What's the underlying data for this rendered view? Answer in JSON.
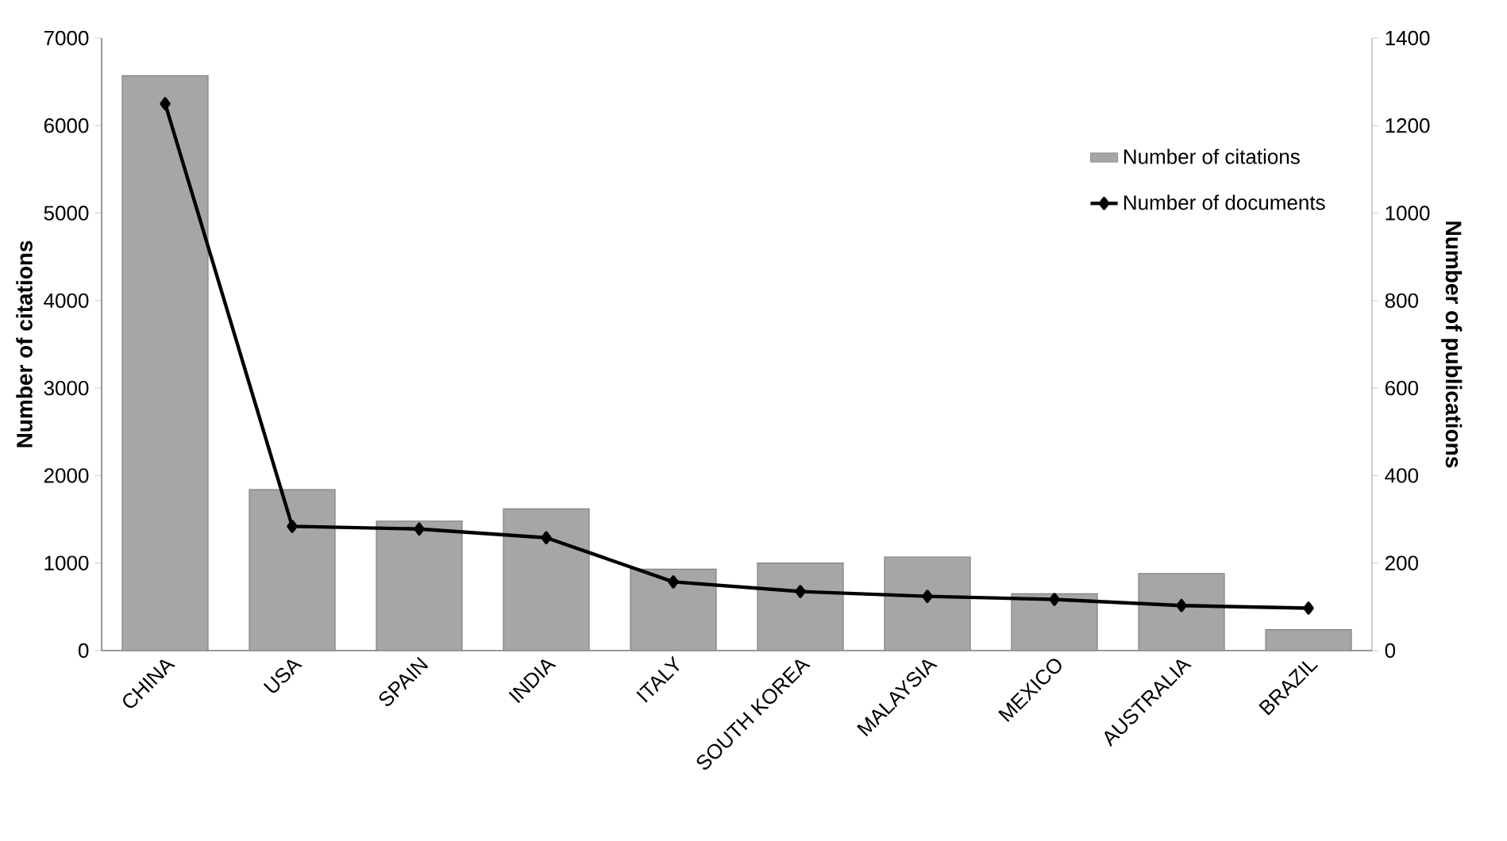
{
  "chart_data": {
    "type": "bar",
    "categories": [
      "CHINA",
      "USA",
      "SPAIN",
      "INDIA",
      "ITALY",
      "SOUTH KOREA",
      "MALAYSIA",
      "MEXICO",
      "AUSTRALIA",
      "BRAZIL"
    ],
    "series": [
      {
        "name": "Number of citations",
        "color": "#a6a6a6",
        "values": [
          6570,
          1840,
          1480,
          1620,
          930,
          1000,
          1070,
          650,
          880,
          240
        ]
      },
      {
        "name": "Number of documents",
        "type": "line",
        "axis": "y2",
        "color": "#000000",
        "marker": "diamond",
        "values": [
          1250,
          284,
          278,
          258,
          157,
          135,
          124,
          117,
          103,
          97
        ]
      }
    ],
    "ylabel": "Number of citations",
    "y2label": "Number of publications",
    "ylim": [
      0,
      7000
    ],
    "yticks": [
      0,
      1000,
      2000,
      3000,
      4000,
      5000,
      6000,
      7000
    ],
    "y2lim": [
      0,
      1400
    ],
    "y2ticks": [
      0,
      200,
      400,
      600,
      800,
      1000,
      1200,
      1400
    ],
    "legend": "top right",
    "grid": false
  }
}
